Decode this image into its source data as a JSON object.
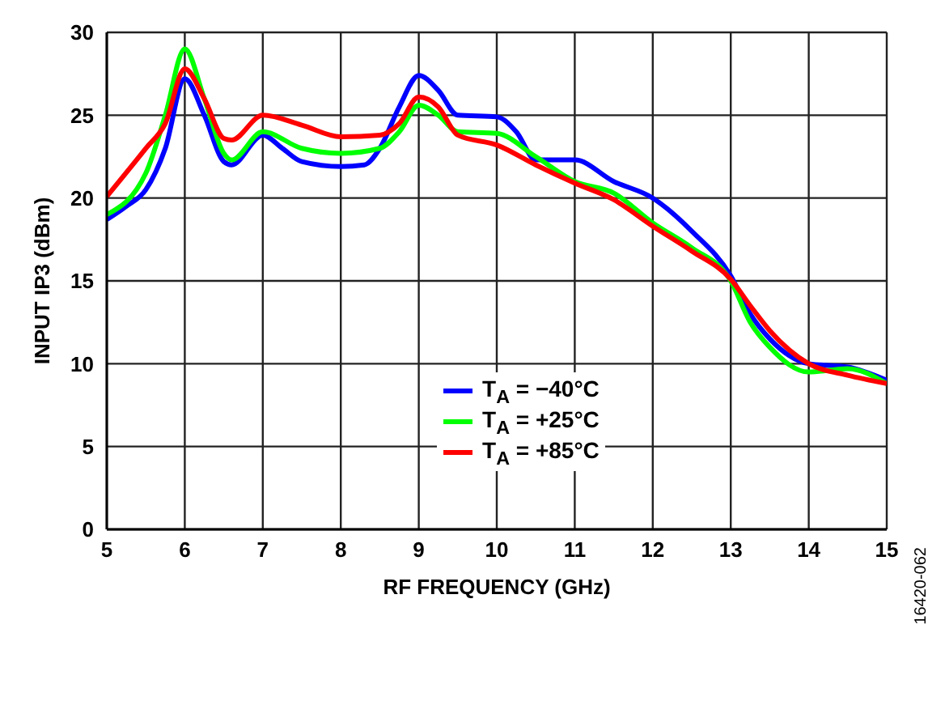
{
  "chart_data": {
    "type": "line",
    "xlabel": "RF FREQUENCY (GHz)",
    "ylabel": "INPUT IP3 (dBm)",
    "annotations": [
      "16420-062"
    ],
    "xlim": [
      5,
      15
    ],
    "xticks": [
      5,
      6,
      7,
      8,
      9,
      10,
      11,
      12,
      13,
      14,
      15
    ],
    "ylim": [
      0,
      30
    ],
    "yticks": [
      0,
      5,
      10,
      15,
      20,
      25,
      30
    ],
    "grid": true,
    "legend": "bottom",
    "marker": "none",
    "line_style": "solid",
    "series": [
      {
        "name": "T$_{A}$ = −40°C",
        "color": "#0000ff",
        "x": [
          5,
          5.25,
          5.5,
          5.75,
          6,
          6.25,
          6.5,
          6.6,
          7,
          7.25,
          7.5,
          8,
          8.3,
          8.5,
          8.75,
          9,
          9.25,
          9.5,
          10,
          10.25,
          10.5,
          11,
          11.5,
          12,
          12.5,
          13,
          13.25,
          13.5,
          14,
          14.5,
          15
        ],
        "values": [
          18.7,
          19.5,
          20.5,
          23,
          27.2,
          25,
          22.2,
          22,
          23.8,
          23,
          22.2,
          21.9,
          22,
          23,
          25.5,
          27.4,
          26.5,
          25,
          24.9,
          24,
          22.3,
          22.3,
          21,
          20,
          18,
          15.3,
          13,
          11.5,
          10,
          9.8,
          9
        ]
      },
      {
        "name": "T$_{A}$ = +25°C",
        "color": "#00ff00",
        "x": [
          5,
          5.5,
          5.75,
          6,
          6.25,
          6.5,
          6.6,
          7,
          7.5,
          8,
          8.5,
          8.75,
          9,
          9.25,
          9.5,
          10,
          10.5,
          11,
          11.5,
          12,
          12.5,
          13,
          13.25,
          13.5,
          14,
          14.5,
          15
        ],
        "values": [
          19,
          21.5,
          25,
          29,
          26,
          22.7,
          22.3,
          24,
          23,
          22.7,
          23,
          24,
          25.6,
          25,
          24,
          23.9,
          22.5,
          21,
          20.3,
          18.5,
          17,
          15,
          12.5,
          11,
          9.5,
          9.7,
          8.8
        ]
      },
      {
        "name": "T$_{A}$ = +85°C",
        "color": "#ff0000",
        "x": [
          5,
          5.5,
          5.75,
          6,
          6.25,
          6.5,
          6.6,
          7,
          7.5,
          8,
          8.5,
          8.75,
          9,
          9.25,
          9.5,
          10,
          10.5,
          11,
          11.5,
          12,
          12.5,
          13,
          13.25,
          13.5,
          14,
          14.5,
          15
        ],
        "values": [
          20.1,
          23,
          24.5,
          27.8,
          26,
          23.6,
          23.5,
          25,
          24.4,
          23.7,
          23.8,
          24.5,
          26.1,
          25.5,
          23.8,
          23.2,
          22,
          20.9,
          19.9,
          18.3,
          16.8,
          15.1,
          13.5,
          12,
          10,
          9.3,
          8.8
        ]
      }
    ]
  }
}
